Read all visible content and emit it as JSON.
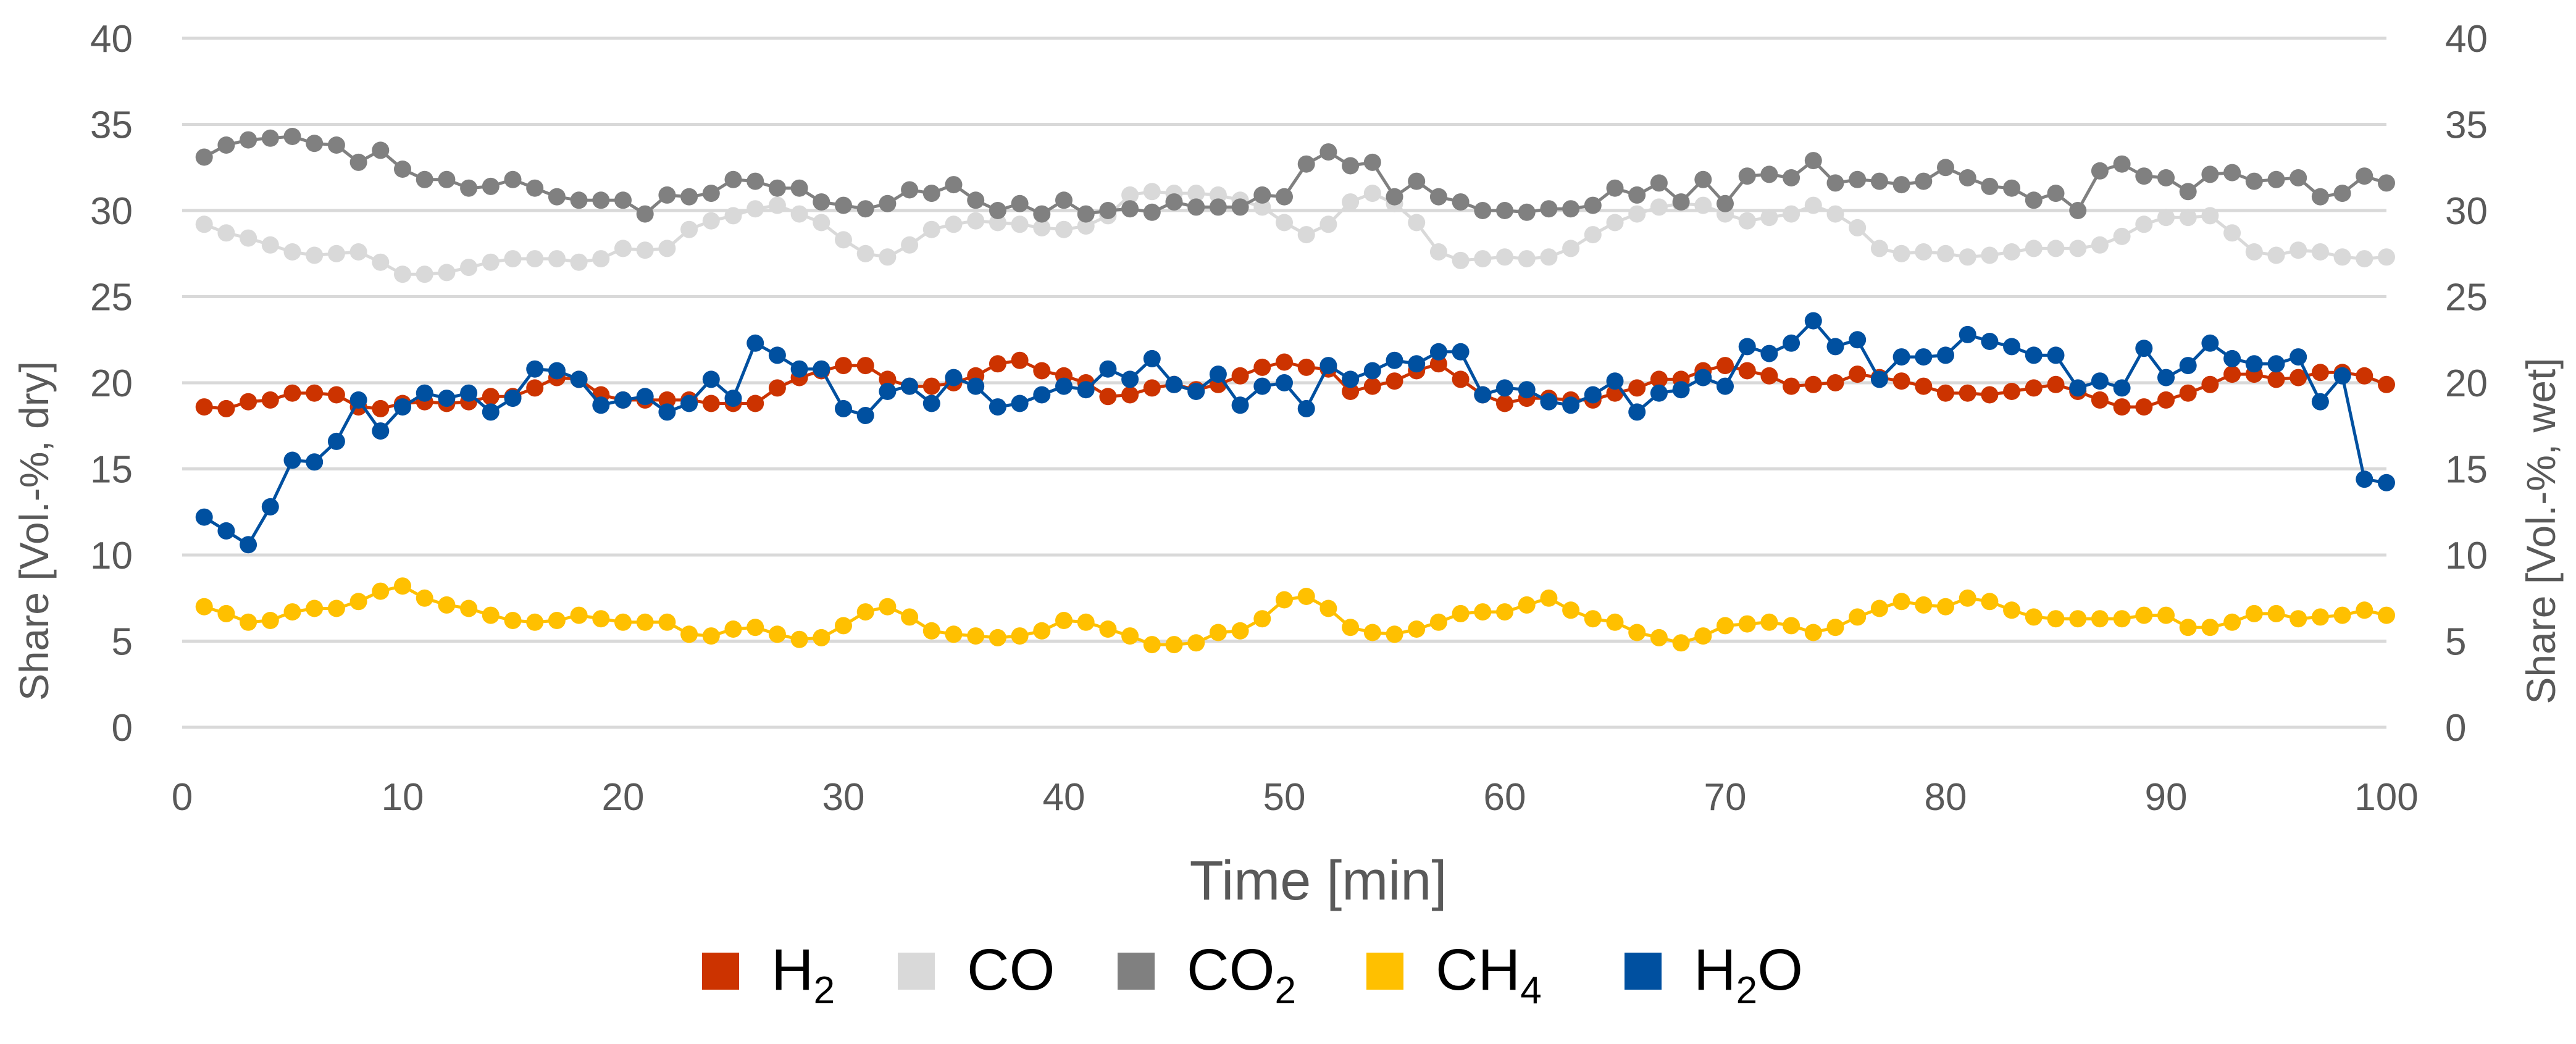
{
  "chart_data": {
    "type": "line",
    "title": "",
    "xlabel": "Time [min]",
    "ylabel_left": "Share [Vol.-%, dry]",
    "ylabel_right": "Share [Vol.-%, wet]",
    "xlim": [
      0,
      100
    ],
    "ylim": [
      0,
      40
    ],
    "xticks": [
      0,
      10,
      20,
      30,
      40,
      50,
      60,
      70,
      80,
      90,
      100
    ],
    "yticks": [
      0,
      5,
      10,
      15,
      20,
      25,
      30,
      35,
      40
    ],
    "grid": "horizontal",
    "legend_position": "bottom",
    "x": [
      1,
      2,
      3,
      4,
      5,
      6,
      7,
      8,
      9,
      10,
      11,
      12,
      13,
      14,
      15,
      16,
      17,
      18,
      19,
      20,
      21,
      22,
      23,
      24,
      25,
      26,
      27,
      28,
      29,
      30,
      31,
      32,
      33,
      34,
      35,
      36,
      37,
      38,
      39,
      40,
      41,
      42,
      43,
      44,
      45,
      46,
      47,
      48,
      49,
      50,
      51,
      52,
      53,
      54,
      55,
      56,
      57,
      58,
      59,
      60,
      61,
      62,
      63,
      64,
      65,
      66,
      67,
      68,
      69,
      70,
      71,
      72,
      73,
      74,
      75,
      76,
      77,
      78,
      79,
      80,
      81,
      82,
      83,
      84,
      85,
      86,
      87,
      88,
      89,
      90,
      91,
      92,
      93,
      94,
      95,
      96,
      97,
      98,
      99,
      100
    ],
    "series": [
      {
        "name": "H2",
        "label_main": "H",
        "label_sub": "2",
        "axis": "left",
        "color": "#cc3300",
        "values": [
          18.6,
          18.5,
          18.9,
          19.0,
          19.4,
          19.4,
          19.3,
          18.6,
          18.5,
          18.8,
          18.9,
          18.8,
          18.9,
          19.2,
          19.2,
          19.7,
          20.3,
          20.2,
          19.3,
          19.0,
          19.0,
          19.0,
          19.0,
          18.8,
          18.8,
          18.8,
          19.7,
          20.3,
          20.7,
          21.0,
          21.0,
          20.2,
          19.8,
          19.8,
          20.0,
          20.4,
          21.1,
          21.3,
          20.7,
          20.4,
          20.0,
          19.2,
          19.3,
          19.7,
          19.9,
          19.6,
          19.9,
          20.4,
          20.9,
          21.2,
          20.9,
          20.8,
          19.5,
          19.8,
          20.1,
          20.7,
          21.1,
          20.2,
          19.3,
          18.8,
          19.1,
          19.1,
          19.0,
          19.0,
          19.4,
          19.7,
          20.2,
          20.2,
          20.7,
          21.0,
          20.7,
          20.4,
          19.8,
          19.9,
          20.0,
          20.5,
          20.3,
          20.1,
          19.8,
          19.4,
          19.4,
          19.3,
          19.5,
          19.7,
          19.9,
          19.5,
          19.0,
          18.6,
          18.6,
          19.0,
          19.4,
          19.9,
          20.5,
          20.5,
          20.2,
          20.3,
          20.6,
          20.6,
          20.4,
          19.9
        ]
      },
      {
        "name": "CO",
        "label_main": "CO",
        "label_sub": "",
        "axis": "left",
        "color": "#d9d9d9",
        "values": [
          29.2,
          28.7,
          28.4,
          28.0,
          27.6,
          27.4,
          27.5,
          27.6,
          27.0,
          26.3,
          26.3,
          26.4,
          26.7,
          27.0,
          27.2,
          27.2,
          27.2,
          27.0,
          27.2,
          27.8,
          27.7,
          27.8,
          28.9,
          29.4,
          29.7,
          30.1,
          30.3,
          29.8,
          29.3,
          28.3,
          27.5,
          27.3,
          28.0,
          28.9,
          29.2,
          29.4,
          29.3,
          29.2,
          29.0,
          28.9,
          29.1,
          29.7,
          30.9,
          31.1,
          31.0,
          31.0,
          30.9,
          30.6,
          30.2,
          29.3,
          28.6,
          29.2,
          30.5,
          31.0,
          30.4,
          29.3,
          27.6,
          27.1,
          27.2,
          27.3,
          27.2,
          27.3,
          27.8,
          28.6,
          29.3,
          29.8,
          30.2,
          30.4,
          30.3,
          29.8,
          29.4,
          29.6,
          29.8,
          30.3,
          29.8,
          29.0,
          27.8,
          27.5,
          27.6,
          27.5,
          27.3,
          27.4,
          27.6,
          27.8,
          27.8,
          27.8,
          28.0,
          28.5,
          29.2,
          29.6,
          29.6,
          29.7,
          28.7,
          27.6,
          27.4,
          27.7,
          27.6,
          27.3,
          27.2,
          27.3
        ]
      },
      {
        "name": "CO2",
        "label_main": "CO",
        "label_sub": "2",
        "axis": "left",
        "color": "#808080",
        "values": [
          33.1,
          33.8,
          34.1,
          34.2,
          34.3,
          33.9,
          33.8,
          32.8,
          33.5,
          32.4,
          31.8,
          31.8,
          31.3,
          31.4,
          31.8,
          31.3,
          30.8,
          30.6,
          30.6,
          30.6,
          29.8,
          30.9,
          30.8,
          31.0,
          31.8,
          31.7,
          31.3,
          31.3,
          30.5,
          30.3,
          30.1,
          30.4,
          31.2,
          31.0,
          31.5,
          30.6,
          30.0,
          30.4,
          29.8,
          30.6,
          29.8,
          30.0,
          30.1,
          29.9,
          30.5,
          30.2,
          30.2,
          30.2,
          30.9,
          30.8,
          32.7,
          33.4,
          32.6,
          32.8,
          30.8,
          31.7,
          30.8,
          30.5,
          30.0,
          30.0,
          29.9,
          30.1,
          30.1,
          30.3,
          31.3,
          30.9,
          31.6,
          30.5,
          31.8,
          30.4,
          32.0,
          32.1,
          31.9,
          32.9,
          31.6,
          31.8,
          31.7,
          31.5,
          31.7,
          32.5,
          31.9,
          31.4,
          31.3,
          30.6,
          31.0,
          30.0,
          32.3,
          32.7,
          32.0,
          31.9,
          31.1,
          32.1,
          32.2,
          31.7,
          31.8,
          31.9,
          30.8,
          31.0,
          32.0,
          31.6
        ]
      },
      {
        "name": "CH4",
        "label_main": "CH",
        "label_sub": "4",
        "axis": "left",
        "color": "#ffc000",
        "values": [
          7.0,
          6.6,
          6.1,
          6.2,
          6.7,
          6.9,
          6.9,
          7.3,
          7.9,
          8.2,
          7.5,
          7.1,
          6.9,
          6.5,
          6.2,
          6.1,
          6.2,
          6.5,
          6.3,
          6.1,
          6.1,
          6.1,
          5.4,
          5.3,
          5.7,
          5.8,
          5.4,
          5.1,
          5.2,
          5.9,
          6.7,
          7.0,
          6.4,
          5.6,
          5.4,
          5.3,
          5.2,
          5.3,
          5.6,
          6.2,
          6.1,
          5.7,
          5.3,
          4.8,
          4.8,
          4.9,
          5.5,
          5.6,
          6.3,
          7.4,
          7.6,
          6.9,
          5.8,
          5.5,
          5.4,
          5.7,
          6.1,
          6.6,
          6.7,
          6.7,
          7.1,
          7.5,
          6.8,
          6.3,
          6.1,
          5.5,
          5.2,
          4.9,
          5.3,
          5.9,
          6.0,
          6.1,
          5.9,
          5.5,
          5.8,
          6.4,
          6.9,
          7.3,
          7.1,
          7.0,
          7.5,
          7.3,
          6.8,
          6.4,
          6.3,
          6.3,
          6.3,
          6.3,
          6.5,
          6.5,
          5.8,
          5.8,
          6.1,
          6.6,
          6.6,
          6.3,
          6.4,
          6.5,
          6.8,
          6.5
        ]
      },
      {
        "name": "H2O",
        "label_main": "H",
        "label_sub": "2",
        "label_tail": "O",
        "axis": "right",
        "color": "#0050a0",
        "values": [
          12.2,
          11.4,
          10.6,
          12.8,
          15.5,
          15.4,
          16.6,
          19.0,
          17.2,
          18.6,
          19.4,
          19.1,
          19.4,
          18.3,
          19.1,
          20.8,
          20.7,
          20.2,
          18.7,
          19.0,
          19.2,
          18.3,
          18.8,
          20.2,
          19.1,
          22.3,
          21.6,
          20.8,
          20.8,
          18.5,
          18.1,
          19.5,
          19.8,
          18.8,
          20.3,
          19.8,
          18.6,
          18.8,
          19.3,
          19.8,
          19.6,
          20.8,
          20.2,
          21.4,
          19.9,
          19.5,
          20.5,
          18.7,
          19.8,
          20.0,
          18.5,
          21.0,
          20.2,
          20.7,
          21.3,
          21.1,
          21.8,
          21.8,
          19.3,
          19.7,
          19.6,
          18.9,
          18.7,
          19.3,
          20.1,
          18.3,
          19.4,
          19.6,
          20.3,
          19.8,
          22.1,
          21.7,
          22.3,
          23.6,
          22.1,
          22.5,
          20.2,
          21.5,
          21.5,
          21.6,
          22.8,
          22.4,
          22.1,
          21.6,
          21.6,
          19.7,
          20.1,
          19.7,
          22.0,
          20.3,
          21.0,
          22.3,
          21.4,
          21.1,
          21.1,
          21.5,
          18.9,
          20.4,
          14.4,
          14.2
        ]
      }
    ]
  }
}
